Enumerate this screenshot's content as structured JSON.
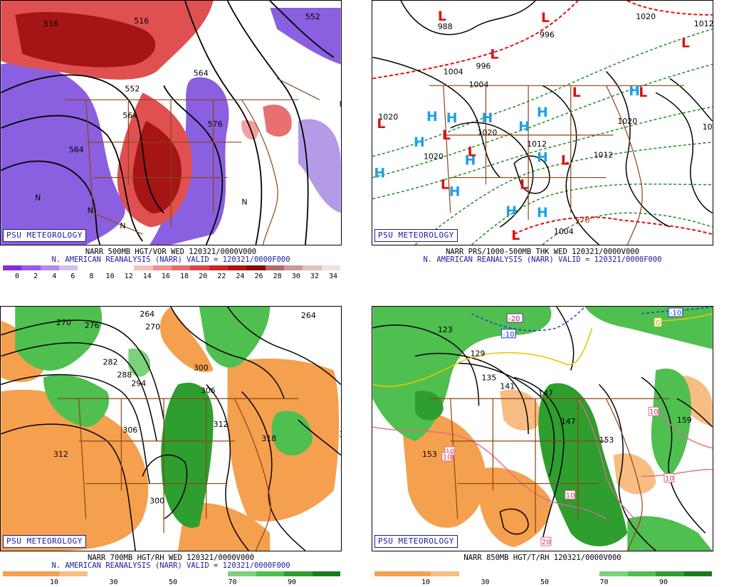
{
  "panels": [
    {
      "badge": "PSU METEOROLOGY",
      "line1": "NARR 500MB HGT/VOR WED 120321/0000V000",
      "line2": "N. AMERICAN REANALYSIS (NARR) VALID = 120321/0000F000",
      "colorbar": {
        "colors": [
          "#8a2be2",
          "#9b59e6",
          "#b48ce8",
          "#d3c0ee",
          "#ffffff",
          "#ffffff",
          "#ffffff",
          "#f7c0c0",
          "#f09090",
          "#e66a6a",
          "#dd4444",
          "#cc2222",
          "#b31212",
          "#8c0a0a",
          "#b06a6a",
          "#c99a9a",
          "#e0c0c0",
          "#f2e0e0"
        ],
        "ticks": [
          "0",
          "2",
          "4",
          "6",
          "8",
          "10",
          "12",
          "14",
          "16",
          "18",
          "20",
          "22",
          "24",
          "26",
          "28",
          "30",
          "32",
          "34"
        ]
      },
      "contour_labels": [
        "516",
        "516",
        "552",
        "552",
        "564",
        "564",
        "576",
        "564"
      ],
      "other_labels": [
        "N",
        "N",
        "N",
        "N",
        "N",
        "N",
        "N"
      ]
    },
    {
      "badge": "PSU METEOROLOGY",
      "line1": "NARR PRS/1000-500MB THK WED 120321/0000V000",
      "line2": "N. AMERICAN REANALYSIS (NARR) VALID = 120321/0000F000",
      "contour_labels": [
        "988",
        "996",
        "996",
        "1004",
        "1004",
        "1020",
        "1020",
        "1020",
        "1012",
        "1012",
        "1020",
        "1028",
        "1020",
        "1012",
        "1004",
        "570"
      ],
      "highs": [
        "H",
        "H",
        "H",
        "H",
        "H",
        "H",
        "H",
        "H",
        "H",
        "H",
        "H",
        "H",
        "H"
      ],
      "lows": [
        "L",
        "L",
        "L",
        "L",
        "L",
        "L",
        "L",
        "L",
        "L",
        "L",
        "L",
        "L",
        "L"
      ]
    },
    {
      "badge": "PSU METEOROLOGY",
      "line1": "NARR 700MB HGT/RH WED 120321/0000V000",
      "line2": "N. AMERICAN REANALYSIS (NARR) VALID = 120321/0000F000",
      "colorbar": {
        "colors": [
          "#f5a04e",
          "#f5a04e",
          "#f7bd82",
          "#ffffff",
          "#ffffff",
          "#ffffff",
          "#ffffff",
          "#ffffff",
          "#7dd17d",
          "#4fbf4f",
          "#2e9e2e",
          "#1a7a1a"
        ],
        "ticks": [
          "10",
          "30",
          "50",
          "70",
          "90"
        ]
      },
      "contour_labels": [
        "270",
        "276",
        "264",
        "270",
        "282",
        "288",
        "294",
        "300",
        "306",
        "306",
        "312",
        "318",
        "312",
        "300",
        "264",
        "318"
      ]
    },
    {
      "badge": "PSU METEOROLOGY",
      "line1": "NARR 850MB HGT/T/RH 120321/0000V000",
      "line2": "",
      "colorbar": {
        "colors": [
          "#f5a04e",
          "#f5a04e",
          "#f7bd82",
          "#ffffff",
          "#ffffff",
          "#ffffff",
          "#ffffff",
          "#ffffff",
          "#7dd17d",
          "#4fbf4f",
          "#2e9e2e",
          "#1a7a1a"
        ],
        "ticks": [
          "10",
          "30",
          "50",
          "70",
          "90"
        ]
      },
      "contour_labels": [
        "123",
        "129",
        "135",
        "141",
        "147",
        "147",
        "153",
        "159",
        "153"
      ],
      "temp_labels": [
        "-20",
        "-10",
        "-10",
        "10",
        "10",
        "10",
        "10",
        "10",
        "20",
        "0"
      ]
    }
  ]
}
